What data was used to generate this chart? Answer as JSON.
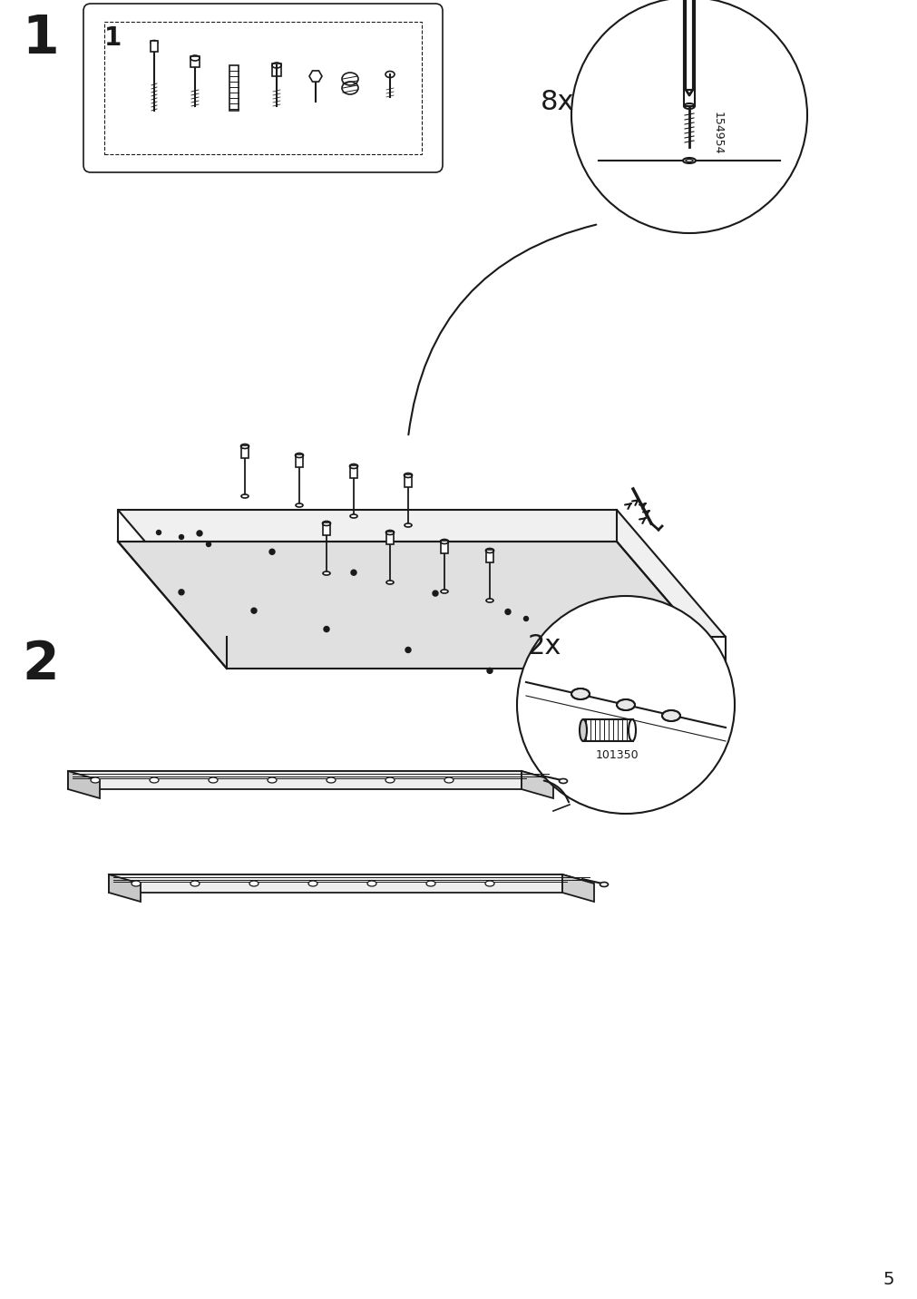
{
  "page_number": "5",
  "background_color": "#ffffff",
  "line_color": "#1a1a1a",
  "step1_label": "1",
  "step2_label": "2",
  "parts_bag_label": "1",
  "qty_label_1": "8x",
  "qty_label_2": "2x",
  "part_code_1": "154954",
  "part_code_2": "101350",
  "fig_width": 10.12,
  "fig_height": 14.32
}
